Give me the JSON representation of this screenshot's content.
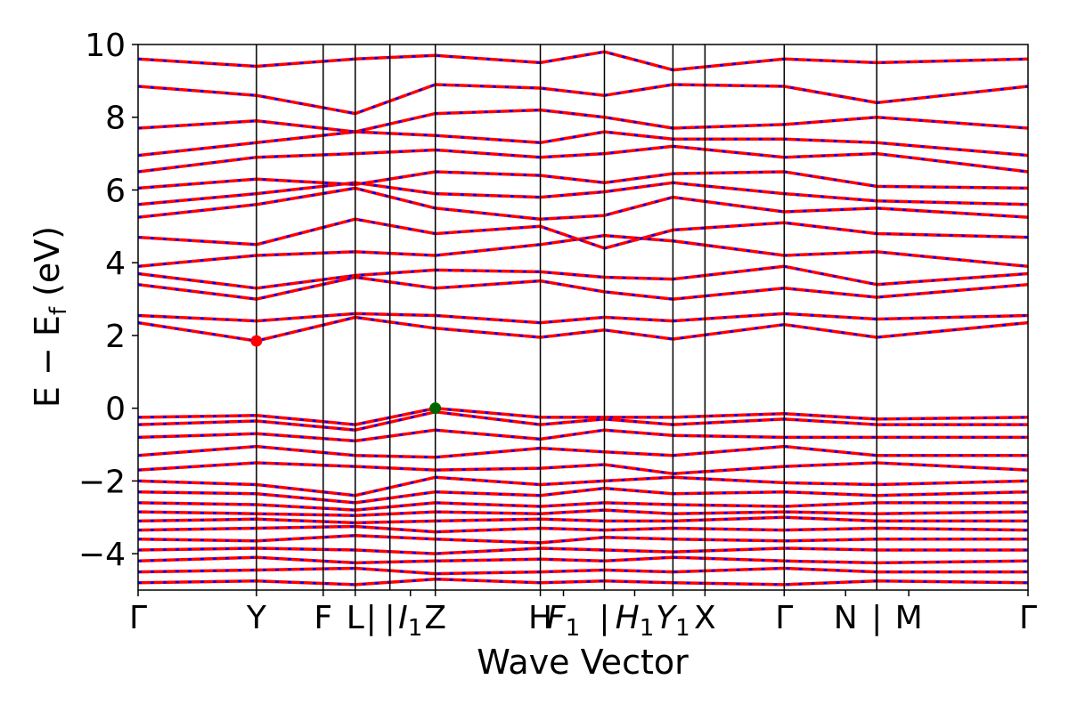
{
  "chart_data": {
    "type": "line",
    "title": "",
    "xlabel": "Wave Vector",
    "ylabel": "E − E",
    "ylabel_subscript": "f",
    "ylabel_unit": " (eV)",
    "ylim": [
      -5,
      10
    ],
    "xlim": [
      0,
      1
    ],
    "grid": false,
    "legend": "none",
    "y_ticks": [
      -4,
      -2,
      0,
      2,
      4,
      6,
      8,
      10
    ],
    "y_tick_labels": [
      "−4",
      "−2",
      "0",
      "2",
      "4",
      "6",
      "8",
      "10"
    ],
    "kpoint_labels": [
      {
        "pos": 0.0,
        "base": "Γ",
        "sub": "",
        "italic": false
      },
      {
        "pos": 0.133,
        "base": "Y",
        "sub": "",
        "italic": false
      },
      {
        "pos": 0.208,
        "base": "F",
        "sub": "",
        "italic": false
      },
      {
        "pos": 0.244,
        "base": "L",
        "sub": "",
        "italic": false
      },
      {
        "pos": 0.262,
        "base": "|",
        "sub": "",
        "italic": false
      },
      {
        "pos": 0.283,
        "base": "|",
        "sub": "",
        "italic": false
      },
      {
        "pos": 0.306,
        "base": "I",
        "sub": "1",
        "italic": true
      },
      {
        "pos": 0.334,
        "base": "Z",
        "sub": "",
        "italic": false
      },
      {
        "pos": 0.452,
        "base": "H",
        "sub": "",
        "italic": false
      },
      {
        "pos": 0.478,
        "base": "F",
        "sub": "1",
        "italic": true
      },
      {
        "pos": 0.524,
        "base": "|",
        "sub": "",
        "italic": false
      },
      {
        "pos": 0.558,
        "base": "H",
        "sub": "1",
        "italic": true
      },
      {
        "pos": 0.601,
        "base": "Y",
        "sub": "1",
        "italic": true
      },
      {
        "pos": 0.637,
        "base": "X",
        "sub": "",
        "italic": false
      },
      {
        "pos": 0.726,
        "base": "Γ",
        "sub": "",
        "italic": false
      },
      {
        "pos": 0.795,
        "base": "N",
        "sub": "",
        "italic": false
      },
      {
        "pos": 0.83,
        "base": "|",
        "sub": "",
        "italic": false
      },
      {
        "pos": 0.866,
        "base": "M",
        "sub": "",
        "italic": false
      },
      {
        "pos": 1.0,
        "base": "Γ",
        "sub": "",
        "italic": false
      }
    ],
    "high_symmetry_lines": [
      0.133,
      0.208,
      0.244,
      0.283,
      0.334,
      0.452,
      0.524,
      0.601,
      0.637,
      0.726,
      0.83
    ],
    "colors": {
      "band_main": "#ff0000",
      "band_dash": "#0000ff",
      "vbm_marker": "#006400",
      "cbm_marker": "#ff0000"
    },
    "markers": [
      {
        "name": "cbm",
        "x": 0.133,
        "y": 1.85
      },
      {
        "name": "vbm",
        "x": 0.334,
        "y": 0.0
      }
    ],
    "series": [
      {
        "group": "conduction",
        "x": [
          0,
          0.133,
          0.244,
          0.334,
          0.452,
          0.524,
          0.601,
          0.726,
          0.83,
          1.0
        ],
        "y": [
          2.35,
          1.85,
          2.5,
          2.2,
          1.95,
          2.15,
          1.9,
          2.3,
          1.95,
          2.35
        ]
      },
      {
        "group": "conduction",
        "x": [
          0,
          0.133,
          0.244,
          0.334,
          0.452,
          0.524,
          0.601,
          0.726,
          0.83,
          1.0
        ],
        "y": [
          2.55,
          2.4,
          2.6,
          2.55,
          2.35,
          2.5,
          2.4,
          2.6,
          2.45,
          2.55
        ]
      },
      {
        "group": "conduction",
        "x": [
          0,
          0.133,
          0.244,
          0.334,
          0.452,
          0.524,
          0.601,
          0.726,
          0.83,
          1.0
        ],
        "y": [
          3.4,
          3.0,
          3.6,
          3.3,
          3.5,
          3.2,
          3.0,
          3.3,
          3.05,
          3.4
        ]
      },
      {
        "group": "conduction",
        "x": [
          0,
          0.133,
          0.244,
          0.334,
          0.452,
          0.524,
          0.601,
          0.726,
          0.83,
          1.0
        ],
        "y": [
          3.7,
          3.3,
          3.65,
          3.8,
          3.75,
          3.6,
          3.55,
          3.9,
          3.4,
          3.7
        ]
      },
      {
        "group": "conduction",
        "x": [
          0,
          0.133,
          0.244,
          0.334,
          0.452,
          0.524,
          0.601,
          0.726,
          0.83,
          1.0
        ],
        "y": [
          3.9,
          4.2,
          4.3,
          4.2,
          4.5,
          4.75,
          4.6,
          4.2,
          4.3,
          3.9
        ]
      },
      {
        "group": "conduction",
        "x": [
          0,
          0.133,
          0.244,
          0.334,
          0.452,
          0.524,
          0.601,
          0.726,
          0.83,
          1.0
        ],
        "y": [
          4.7,
          4.5,
          5.2,
          4.8,
          5.0,
          4.4,
          4.9,
          5.1,
          4.8,
          4.7
        ]
      },
      {
        "group": "conduction",
        "x": [
          0,
          0.133,
          0.244,
          0.334,
          0.452,
          0.524,
          0.601,
          0.726,
          0.83,
          1.0
        ],
        "y": [
          5.25,
          5.6,
          6.05,
          5.5,
          5.2,
          5.3,
          5.8,
          5.4,
          5.5,
          5.25
        ]
      },
      {
        "group": "conduction",
        "x": [
          0,
          0.133,
          0.244,
          0.334,
          0.452,
          0.524,
          0.601,
          0.726,
          0.83,
          1.0
        ],
        "y": [
          5.6,
          5.9,
          6.2,
          5.9,
          5.8,
          5.95,
          6.2,
          5.9,
          5.7,
          5.6
        ]
      },
      {
        "group": "conduction",
        "x": [
          0,
          0.133,
          0.244,
          0.334,
          0.452,
          0.524,
          0.601,
          0.726,
          0.83,
          1.0
        ],
        "y": [
          6.05,
          6.3,
          6.15,
          6.5,
          6.4,
          6.2,
          6.45,
          6.5,
          6.1,
          6.05
        ]
      },
      {
        "group": "conduction",
        "x": [
          0,
          0.133,
          0.244,
          0.334,
          0.452,
          0.524,
          0.601,
          0.726,
          0.83,
          1.0
        ],
        "y": [
          6.5,
          6.9,
          7.0,
          7.1,
          6.9,
          7.0,
          7.2,
          6.9,
          7.0,
          6.5
        ]
      },
      {
        "group": "conduction",
        "x": [
          0,
          0.133,
          0.244,
          0.334,
          0.452,
          0.524,
          0.601,
          0.726,
          0.83,
          1.0
        ],
        "y": [
          6.95,
          7.3,
          7.6,
          7.5,
          7.3,
          7.6,
          7.4,
          7.4,
          7.3,
          6.95
        ]
      },
      {
        "group": "conduction",
        "x": [
          0,
          0.133,
          0.244,
          0.334,
          0.452,
          0.524,
          0.601,
          0.726,
          0.83,
          1.0
        ],
        "y": [
          7.7,
          7.9,
          7.6,
          8.1,
          8.2,
          8.0,
          7.7,
          7.8,
          8.0,
          7.7
        ]
      },
      {
        "group": "conduction",
        "x": [
          0,
          0.133,
          0.244,
          0.334,
          0.452,
          0.524,
          0.601,
          0.726,
          0.83,
          1.0
        ],
        "y": [
          8.85,
          8.6,
          8.1,
          8.9,
          8.8,
          8.6,
          8.9,
          8.85,
          8.4,
          8.85
        ]
      },
      {
        "group": "conduction",
        "x": [
          0,
          0.133,
          0.244,
          0.334,
          0.452,
          0.524,
          0.601,
          0.726,
          0.83,
          1.0
        ],
        "y": [
          9.6,
          9.4,
          9.6,
          9.7,
          9.5,
          9.8,
          9.3,
          9.6,
          9.5,
          9.6
        ]
      },
      {
        "group": "valence",
        "x": [
          0,
          0.133,
          0.244,
          0.334,
          0.452,
          0.524,
          0.601,
          0.726,
          0.83,
          1.0
        ],
        "y": [
          -0.25,
          -0.2,
          -0.45,
          0.0,
          -0.25,
          -0.25,
          -0.25,
          -0.15,
          -0.3,
          -0.25
        ]
      },
      {
        "group": "valence",
        "x": [
          0,
          0.133,
          0.244,
          0.334,
          0.452,
          0.524,
          0.601,
          0.726,
          0.83,
          1.0
        ],
        "y": [
          -0.45,
          -0.35,
          -0.6,
          -0.1,
          -0.45,
          -0.3,
          -0.45,
          -0.3,
          -0.45,
          -0.45
        ]
      },
      {
        "group": "valence",
        "x": [
          0,
          0.133,
          0.244,
          0.334,
          0.452,
          0.524,
          0.601,
          0.726,
          0.83,
          1.0
        ],
        "y": [
          -0.8,
          -0.7,
          -0.9,
          -0.6,
          -0.85,
          -0.6,
          -0.75,
          -0.8,
          -0.8,
          -0.8
        ]
      },
      {
        "group": "valence",
        "x": [
          0,
          0.133,
          0.244,
          0.334,
          0.452,
          0.524,
          0.601,
          0.726,
          0.83,
          1.0
        ],
        "y": [
          -1.3,
          -1.05,
          -1.3,
          -1.35,
          -1.1,
          -1.2,
          -1.3,
          -1.05,
          -1.3,
          -1.3
        ]
      },
      {
        "group": "valence",
        "x": [
          0,
          0.133,
          0.244,
          0.334,
          0.452,
          0.524,
          0.601,
          0.726,
          0.83,
          1.0
        ],
        "y": [
          -1.7,
          -1.5,
          -1.6,
          -1.7,
          -1.65,
          -1.55,
          -1.8,
          -1.6,
          -1.5,
          -1.7
        ]
      },
      {
        "group": "valence",
        "x": [
          0,
          0.133,
          0.244,
          0.334,
          0.452,
          0.524,
          0.601,
          0.726,
          0.83,
          1.0
        ],
        "y": [
          -2.0,
          -2.1,
          -2.4,
          -1.9,
          -2.1,
          -2.0,
          -1.9,
          -2.05,
          -2.1,
          -2.0
        ]
      },
      {
        "group": "valence",
        "x": [
          0,
          0.133,
          0.244,
          0.334,
          0.452,
          0.524,
          0.601,
          0.726,
          0.83,
          1.0
        ],
        "y": [
          -2.3,
          -2.35,
          -2.6,
          -2.3,
          -2.4,
          -2.2,
          -2.35,
          -2.3,
          -2.4,
          -2.3
        ]
      },
      {
        "group": "valence",
        "x": [
          0,
          0.133,
          0.244,
          0.334,
          0.452,
          0.524,
          0.601,
          0.726,
          0.83,
          1.0
        ],
        "y": [
          -2.6,
          -2.65,
          -2.8,
          -2.6,
          -2.7,
          -2.6,
          -2.65,
          -2.7,
          -2.6,
          -2.6
        ]
      },
      {
        "group": "valence",
        "x": [
          0,
          0.133,
          0.244,
          0.334,
          0.452,
          0.524,
          0.601,
          0.726,
          0.83,
          1.0
        ],
        "y": [
          -2.85,
          -2.9,
          -2.95,
          -2.85,
          -2.9,
          -2.8,
          -2.9,
          -2.85,
          -2.9,
          -2.85
        ]
      },
      {
        "group": "valence",
        "x": [
          0,
          0.133,
          0.244,
          0.334,
          0.452,
          0.524,
          0.601,
          0.726,
          0.83,
          1.0
        ],
        "y": [
          -3.1,
          -3.05,
          -3.15,
          -3.1,
          -3.05,
          -3.1,
          -3.1,
          -3.0,
          -3.1,
          -3.1
        ]
      },
      {
        "group": "valence",
        "x": [
          0,
          0.133,
          0.244,
          0.334,
          0.452,
          0.524,
          0.601,
          0.726,
          0.83,
          1.0
        ],
        "y": [
          -3.35,
          -3.3,
          -3.25,
          -3.4,
          -3.3,
          -3.35,
          -3.3,
          -3.35,
          -3.3,
          -3.35
        ]
      },
      {
        "group": "valence",
        "x": [
          0,
          0.133,
          0.244,
          0.334,
          0.452,
          0.524,
          0.601,
          0.726,
          0.83,
          1.0
        ],
        "y": [
          -3.6,
          -3.65,
          -3.5,
          -3.6,
          -3.7,
          -3.55,
          -3.6,
          -3.65,
          -3.6,
          -3.6
        ]
      },
      {
        "group": "valence",
        "x": [
          0,
          0.133,
          0.244,
          0.334,
          0.452,
          0.524,
          0.601,
          0.726,
          0.83,
          1.0
        ],
        "y": [
          -3.9,
          -3.85,
          -3.9,
          -4.0,
          -3.85,
          -3.9,
          -3.95,
          -3.85,
          -3.9,
          -3.9
        ]
      },
      {
        "group": "valence",
        "x": [
          0,
          0.133,
          0.244,
          0.334,
          0.452,
          0.524,
          0.601,
          0.726,
          0.83,
          1.0
        ],
        "y": [
          -4.2,
          -4.1,
          -4.25,
          -4.2,
          -4.15,
          -4.2,
          -4.1,
          -4.2,
          -4.25,
          -4.2
        ]
      },
      {
        "group": "valence",
        "x": [
          0,
          0.133,
          0.244,
          0.334,
          0.452,
          0.524,
          0.601,
          0.726,
          0.83,
          1.0
        ],
        "y": [
          -4.5,
          -4.45,
          -4.4,
          -4.55,
          -4.5,
          -4.45,
          -4.5,
          -4.4,
          -4.5,
          -4.5
        ]
      },
      {
        "group": "valence",
        "x": [
          0,
          0.133,
          0.244,
          0.334,
          0.452,
          0.524,
          0.601,
          0.726,
          0.83,
          1.0
        ],
        "y": [
          -4.8,
          -4.75,
          -4.85,
          -4.7,
          -4.8,
          -4.75,
          -4.8,
          -4.85,
          -4.75,
          -4.8
        ]
      }
    ]
  }
}
